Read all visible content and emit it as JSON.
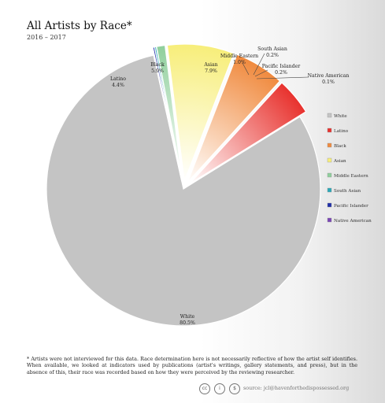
{
  "title": "All Artists by Race*",
  "subtitle": "2016 – 2017",
  "footnote": "* Artists were not interviewed for this data. Race determination here is not necessarily reflective of how the artist self identifies. When available, we looked at indicators used by publications (artist's writings, gallery statements, and press), but in the absence of this, their race was recorded based on how they were perceived by the reviewing researcher.",
  "source": "source: jcl@havenforthedispossessed.org",
  "license_icons": [
    "cc-icon",
    "attribution-icon",
    "noncommercial-icon"
  ],
  "chart_data": {
    "type": "pie",
    "title": "All Artists by Race*",
    "subtitle": "2016 – 2017",
    "legend_position": "right",
    "slices": [
      {
        "label": "White",
        "value": 80.5,
        "display": "80.5%",
        "color": "#c4c4c4"
      },
      {
        "label": "Latino",
        "value": 4.4,
        "display": "4.4%",
        "color": "#e8322e"
      },
      {
        "label": "Black",
        "value": 5.9,
        "display": "5.9%",
        "color": "#f08a3e"
      },
      {
        "label": "Asian",
        "value": 7.9,
        "display": "7.9%",
        "color": "#f7ee7a"
      },
      {
        "label": "Middle Eastern",
        "value": 1.0,
        "display": "1.0%",
        "color": "#8fcf9c"
      },
      {
        "label": "South Asian",
        "value": 0.2,
        "display": "0.2%",
        "color": "#2ba8b8"
      },
      {
        "label": "Pacific Islander",
        "value": 0.2,
        "display": "0.2%",
        "color": "#1f2fa8"
      },
      {
        "label": "Native American",
        "value": 0.1,
        "display": "0.1%",
        "color": "#7a45b5"
      }
    ]
  }
}
